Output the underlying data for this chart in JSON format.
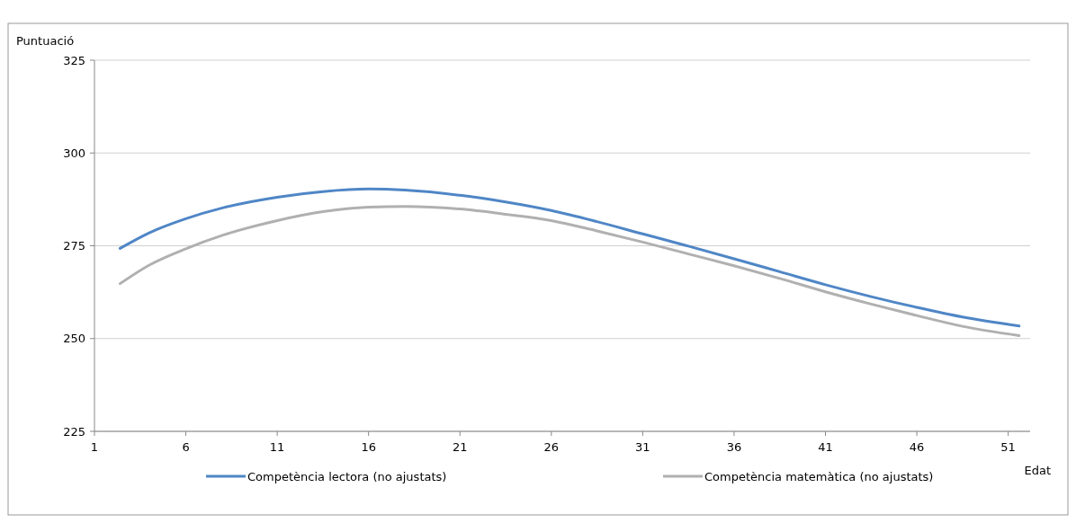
{
  "chart_data": {
    "type": "line",
    "xlabel": "Edat",
    "ylabel": "Puntuació",
    "xlim": [
      1,
      52.2
    ],
    "xticks": [
      1,
      6,
      11,
      16,
      21,
      26,
      31,
      36,
      41,
      46,
      51
    ],
    "ylim": [
      225,
      325
    ],
    "yticks": [
      225,
      250,
      275,
      300,
      325
    ],
    "grid": "y",
    "legend": "bottom",
    "marker": "none",
    "line_style": "solid",
    "x": [
      2.4,
      4,
      6,
      8,
      11,
      13.5,
      16,
      18,
      21,
      23.5,
      26,
      28.5,
      31,
      33.5,
      36,
      38.5,
      41,
      43.5,
      46,
      48.5,
      51.6
    ],
    "series": [
      {
        "name": "Competència lectora (no ajustats)",
        "color": "#4f86c6",
        "values": [
          274.3,
          278.5,
          282.3,
          285.2,
          288.1,
          289.6,
          290.3,
          290.0,
          288.6,
          286.8,
          284.5,
          281.5,
          278.2,
          274.9,
          271.5,
          268.0,
          264.5,
          261.3,
          258.4,
          255.8,
          253.4
        ]
      },
      {
        "name": "Competència matemàtica (no ajustats)",
        "color": "#b0b0b0",
        "values": [
          264.8,
          269.8,
          274.2,
          277.8,
          281.8,
          284.2,
          285.4,
          285.6,
          284.9,
          283.5,
          281.8,
          279.0,
          276.0,
          272.8,
          269.6,
          266.2,
          262.6,
          259.3,
          256.2,
          253.3,
          250.8
        ]
      }
    ]
  }
}
